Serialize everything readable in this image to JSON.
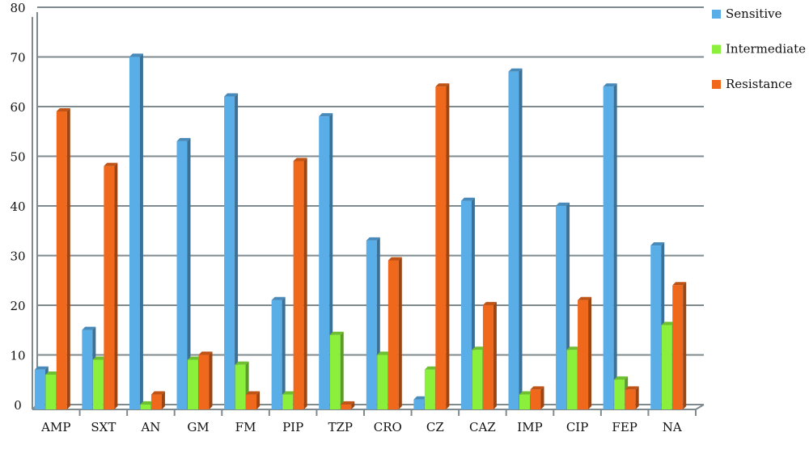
{
  "chart_data": {
    "type": "bar3d",
    "categories": [
      "AMP",
      "SXT",
      "AN",
      "GM",
      "FM",
      "PIP",
      "TZP",
      "CRO",
      "CZ",
      "CAZ",
      "IMP",
      "CIP",
      "FEP",
      "NA"
    ],
    "series": [
      {
        "name": "Sensitive",
        "color": "#5aaee8",
        "values": [
          8,
          16,
          71,
          54,
          63,
          22,
          59,
          34,
          2,
          42,
          68,
          41,
          65,
          33
        ]
      },
      {
        "name": "Intermediate",
        "color": "#8af03c",
        "values": [
          7,
          10,
          1,
          10,
          9,
          3,
          15,
          11,
          8,
          12,
          3,
          12,
          6,
          17
        ]
      },
      {
        "name": "Resistance",
        "color": "#f0681c",
        "values": [
          60,
          49,
          3,
          11,
          3,
          50,
          1,
          30,
          65,
          21,
          4,
          22,
          4,
          25
        ]
      }
    ],
    "ylim": [
      0,
      80
    ],
    "yticks": [
      0,
      10,
      20,
      30,
      40,
      50,
      60,
      70,
      80
    ],
    "grid": true,
    "legend": "right"
  }
}
